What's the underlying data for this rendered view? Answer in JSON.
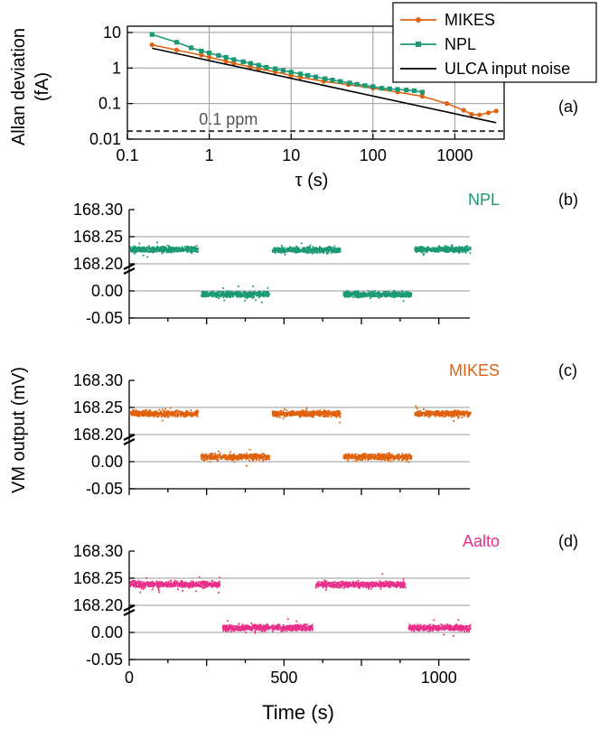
{
  "colors": {
    "mikes": "#E0620E",
    "npl": "#1A9974",
    "ulca": "#000000",
    "aalto": "#E8308A",
    "grid": "#9a9a9a",
    "ppm_line": "#3a3a3a"
  },
  "chart_data": [
    {
      "type": "line",
      "panel_label": "(a)",
      "xlabel": "τ (s)",
      "ylabel": [
        "Allan deviation",
        "(fA)"
      ],
      "xscale": "log",
      "yscale": "log",
      "xlim": [
        0.1,
        4000
      ],
      "ylim": [
        0.01,
        15
      ],
      "grid": true,
      "legend_position": "top-right",
      "x_ticks": [
        {
          "value": 0.1,
          "label": "0.1"
        },
        {
          "value": 1,
          "label": "1"
        },
        {
          "value": 10,
          "label": "10"
        },
        {
          "value": 100,
          "label": "100"
        },
        {
          "value": 1000,
          "label": "1000"
        }
      ],
      "y_ticks": [
        {
          "value": 10,
          "label": "10"
        },
        {
          "value": 1,
          "label": "1"
        },
        {
          "value": 0.1,
          "label": "0.1"
        },
        {
          "value": 0.01,
          "label": "0.01"
        }
      ],
      "reference_line": {
        "y": 0.0168,
        "label": "0.1 ppm"
      },
      "series": [
        {
          "name": "MIKES",
          "color_key": "mikes",
          "marker": "circle",
          "x": [
            0.2,
            0.4,
            0.8,
            1.0,
            1.6,
            2.0,
            3.2,
            4.0,
            6.4,
            10,
            13,
            25,
            50,
            100,
            200,
            400,
            800,
            1280,
            1600,
            2000,
            2560,
            3200
          ],
          "y": [
            4.5,
            3.2,
            2.3,
            2.0,
            1.55,
            1.35,
            1.08,
            0.95,
            0.78,
            0.62,
            0.55,
            0.42,
            0.34,
            0.27,
            0.21,
            0.16,
            0.1,
            0.065,
            0.05,
            0.048,
            0.055,
            0.062
          ]
        },
        {
          "name": "NPL",
          "color_key": "npl",
          "marker": "square",
          "x": [
            0.2,
            0.4,
            0.6,
            0.8,
            1.0,
            1.3,
            1.6,
            2.0,
            2.6,
            3.2,
            4.0,
            5.0,
            6.4,
            8.0,
            10,
            13,
            16,
            20,
            26,
            32,
            40,
            52,
            64,
            80,
            100,
            128,
            160,
            200,
            256,
            320,
            400
          ],
          "y": [
            8.8,
            5.3,
            3.7,
            3.0,
            2.65,
            2.25,
            2.0,
            1.72,
            1.5,
            1.35,
            1.2,
            1.05,
            0.95,
            0.85,
            0.77,
            0.68,
            0.62,
            0.56,
            0.5,
            0.46,
            0.42,
            0.38,
            0.35,
            0.32,
            0.3,
            0.27,
            0.26,
            0.25,
            0.24,
            0.23,
            0.21
          ]
        },
        {
          "name": "ULCA input noise",
          "color_key": "ulca",
          "marker": "none",
          "x": [
            0.2,
            3200
          ],
          "y": [
            3.6,
            0.029
          ]
        }
      ]
    },
    {
      "type": "scatter",
      "panel_label": "(b)",
      "series_label": "NPL",
      "color_key": "npl",
      "xlim": [
        0,
        1100
      ],
      "broken_axis": true,
      "y_ticks": [
        "168.30",
        "168.25",
        "168.20",
        "0.00",
        "-0.05"
      ],
      "segments": [
        {
          "t_start": 0,
          "t_end": 220,
          "level": "high",
          "value_mV": 168.228
        },
        {
          "t_start": 230,
          "t_end": 450,
          "level": "low",
          "value_mV": -0.005
        },
        {
          "t_start": 460,
          "t_end": 680,
          "level": "high",
          "value_mV": 168.227
        },
        {
          "t_start": 690,
          "t_end": 910,
          "level": "low",
          "value_mV": -0.005
        },
        {
          "t_start": 920,
          "t_end": 1100,
          "level": "high",
          "value_mV": 168.228
        }
      ]
    },
    {
      "type": "scatter",
      "panel_label": "(c)",
      "series_label": "MIKES",
      "color_key": "mikes",
      "xlim": [
        0,
        1100
      ],
      "broken_axis": true,
      "y_ticks": [
        "168.30",
        "168.25",
        "168.20",
        "0.00",
        "-0.05"
      ],
      "segments": [
        {
          "t_start": 0,
          "t_end": 220,
          "level": "high",
          "value_mV": 168.24
        },
        {
          "t_start": 230,
          "t_end": 450,
          "level": "low",
          "value_mV": 0.01
        },
        {
          "t_start": 460,
          "t_end": 680,
          "level": "high",
          "value_mV": 168.24
        },
        {
          "t_start": 690,
          "t_end": 910,
          "level": "low",
          "value_mV": 0.01
        },
        {
          "t_start": 920,
          "t_end": 1100,
          "level": "high",
          "value_mV": 168.24
        }
      ]
    },
    {
      "type": "scatter",
      "panel_label": "(d)",
      "series_label": "Aalto",
      "color_key": "aalto",
      "xlim": [
        0,
        1100
      ],
      "xlabel": "Time (s)",
      "x_ticks": [
        {
          "value": 0,
          "label": "0"
        },
        {
          "value": 500,
          "label": "500"
        },
        {
          "value": 1000,
          "label": "1000"
        }
      ],
      "broken_axis": true,
      "y_ticks": [
        "168.30",
        "168.25",
        "168.20",
        "0.00",
        "-0.05"
      ],
      "segments": [
        {
          "t_start": 0,
          "t_end": 290,
          "level": "high",
          "value_mV": 168.24
        },
        {
          "t_start": 300,
          "t_end": 590,
          "level": "low",
          "value_mV": 0.01
        },
        {
          "t_start": 600,
          "t_end": 890,
          "level": "high",
          "value_mV": 168.24
        },
        {
          "t_start": 900,
          "t_end": 1100,
          "level": "low",
          "value_mV": 0.01
        }
      ]
    }
  ],
  "shared_ylabel": "VM output (mV)"
}
